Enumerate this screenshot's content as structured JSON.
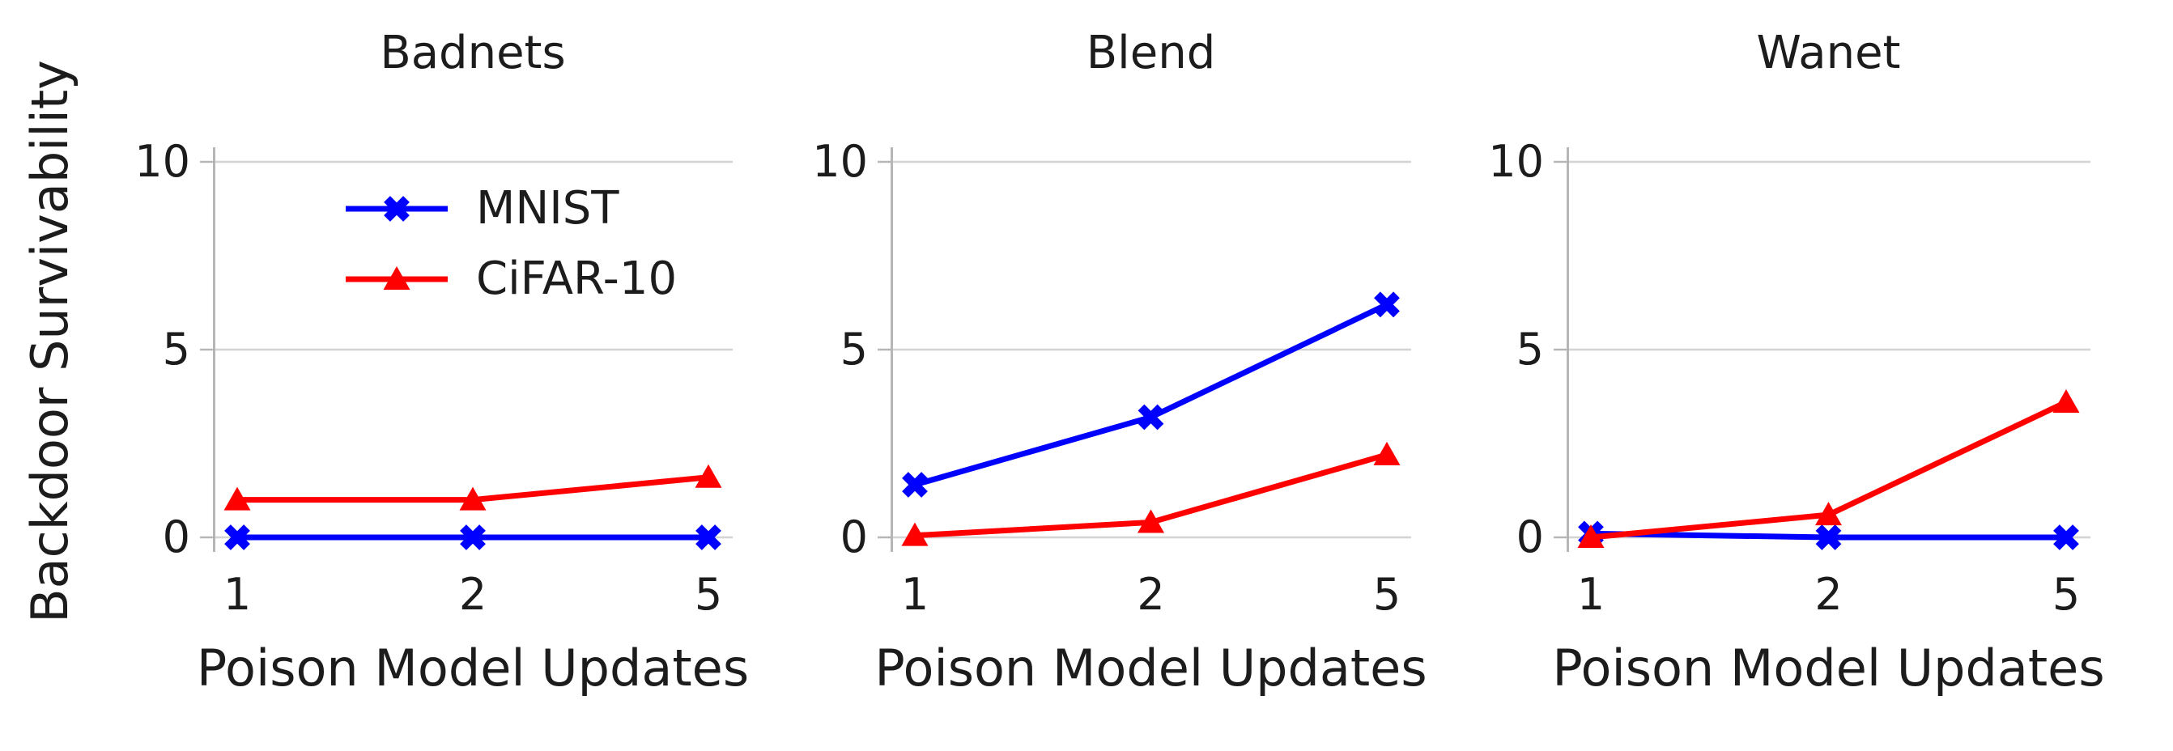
{
  "page": {
    "background": "#ffffff"
  },
  "figure": {
    "ylabel": "Backdoor Survivability",
    "xlabel": "Poison Model Updates"
  },
  "legend": {
    "location": "upper-left-of-first-panel",
    "items": [
      {
        "label": "MNIST",
        "color": "#0000FF",
        "marker": "x"
      },
      {
        "label": "CiFAR-10",
        "color": "#FF0000",
        "marker": "triangle-up"
      }
    ]
  },
  "style": {
    "text_color": "#1c1c1c",
    "grid_color": "#D4D4D4",
    "spine_color": "#B6B6B6",
    "background": "#ffffff"
  },
  "chart_data": [
    {
      "type": "line",
      "title": "Badnets",
      "x": [
        1,
        2,
        5
      ],
      "x_scale": "categorical-equal-spacing",
      "xlabel": "Poison Model Updates",
      "ylabel": "Backdoor Survivability",
      "yticks": [
        0,
        5,
        10
      ],
      "ylim": [
        -0.4,
        10.4
      ],
      "grid": "horizontal-only",
      "legend_position": "upper-left",
      "series": [
        {
          "name": "MNIST",
          "color": "#0000FF",
          "marker": "x",
          "values": [
            0,
            0,
            0
          ]
        },
        {
          "name": "CiFAR-10",
          "color": "#FF0000",
          "marker": "triangle-up",
          "values": [
            1.0,
            1.0,
            1.6
          ]
        }
      ]
    },
    {
      "type": "line",
      "title": "Blend",
      "x": [
        1,
        2,
        5
      ],
      "x_scale": "categorical-equal-spacing",
      "xlabel": "Poison Model Updates",
      "yticks": [
        0,
        5,
        10
      ],
      "ylim": [
        -0.4,
        10.4
      ],
      "grid": "horizontal-only",
      "series": [
        {
          "name": "MNIST",
          "color": "#0000FF",
          "marker": "x",
          "values": [
            1.4,
            3.2,
            6.2
          ]
        },
        {
          "name": "CiFAR-10",
          "color": "#FF0000",
          "marker": "triangle-up",
          "values": [
            0.05,
            0.4,
            2.2
          ]
        }
      ]
    },
    {
      "type": "line",
      "title": "Wanet",
      "x": [
        1,
        2,
        5
      ],
      "x_scale": "categorical-equal-spacing",
      "xlabel": "Poison Model Updates",
      "yticks": [
        0,
        5,
        10
      ],
      "ylim": [
        -0.4,
        10.4
      ],
      "grid": "horizontal-only",
      "series": [
        {
          "name": "MNIST",
          "color": "#0000FF",
          "marker": "x",
          "values": [
            0.1,
            0,
            0
          ]
        },
        {
          "name": "CiFAR-10",
          "color": "#FF0000",
          "marker": "triangle-up",
          "values": [
            0,
            0.6,
            3.6
          ]
        }
      ]
    }
  ]
}
